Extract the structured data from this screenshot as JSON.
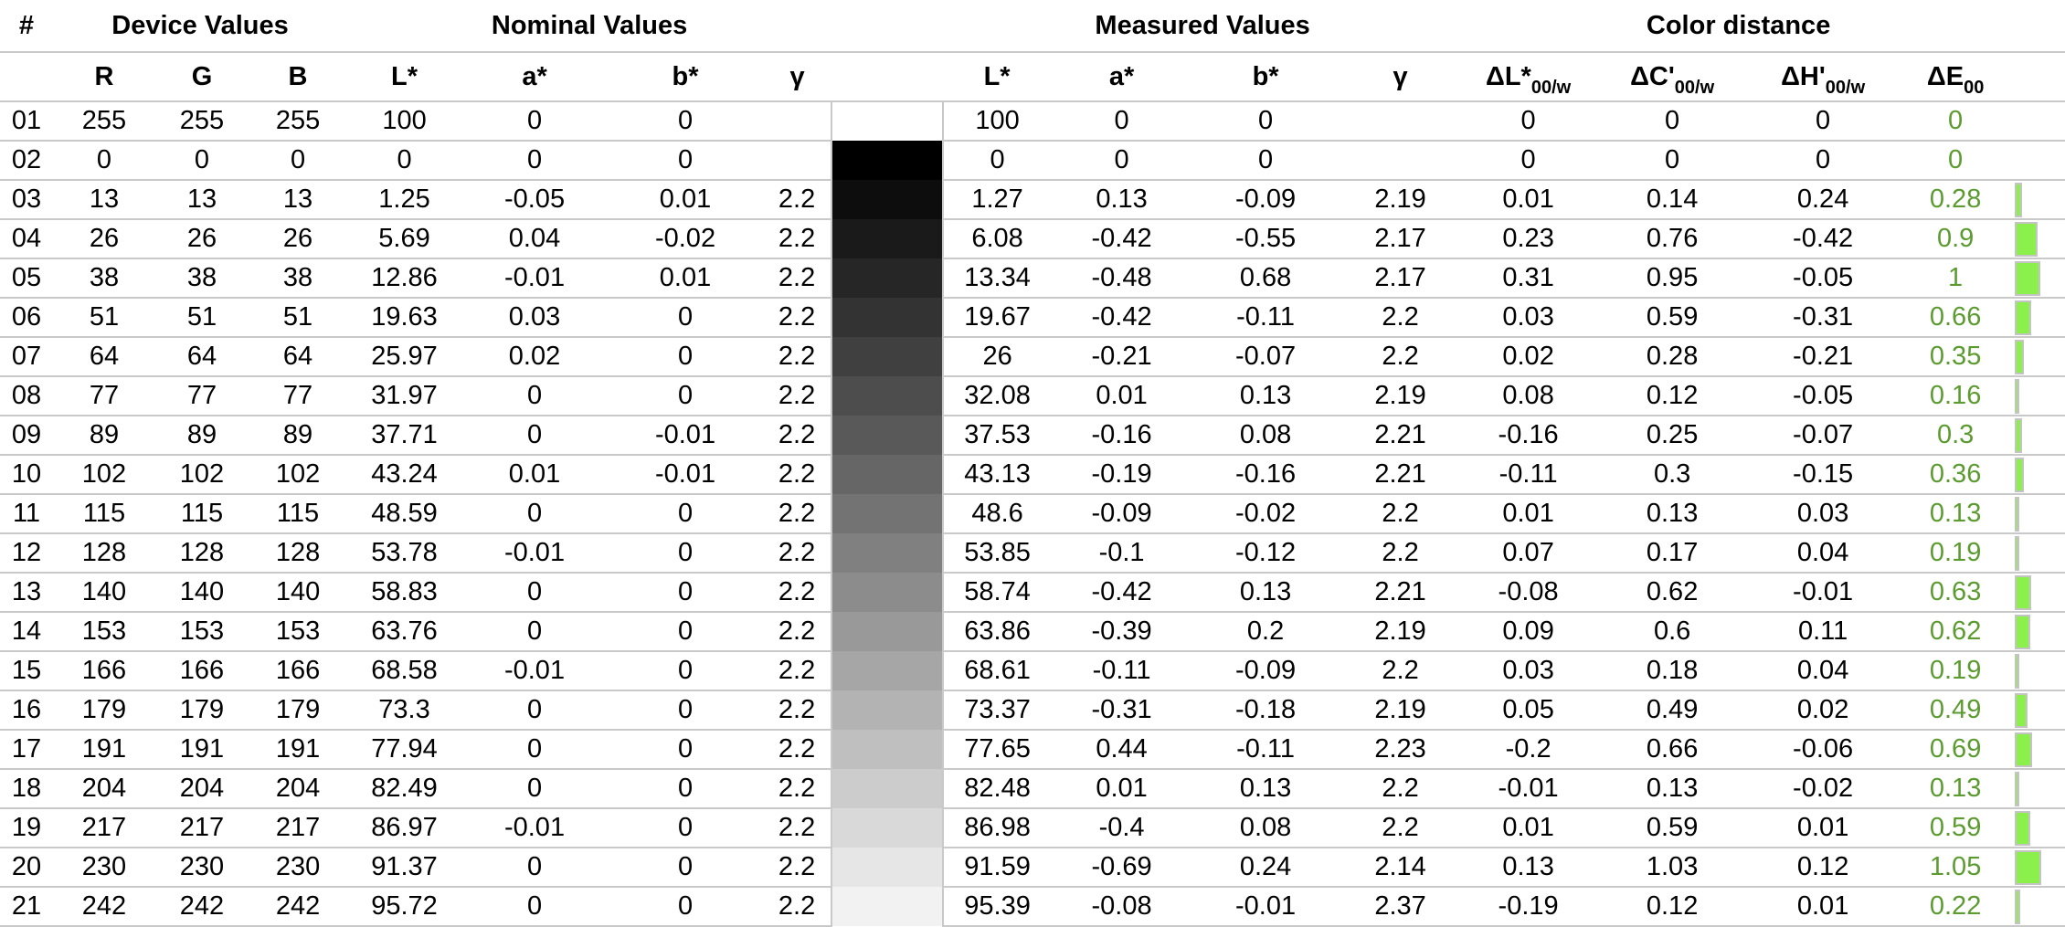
{
  "header": {
    "groups": {
      "index": "#",
      "device": "Device Values",
      "nominal": "Nominal Values",
      "measured": "Measured Values",
      "distance": "Color distance"
    },
    "device_cols": [
      "R",
      "G",
      "B"
    ],
    "nominal_cols": [
      "L*",
      "a*",
      "b*",
      "γ"
    ],
    "measured_cols": [
      "L*",
      "a*",
      "b*",
      "γ"
    ],
    "distance_cols": [
      {
        "base": "ΔL*",
        "sub": "00/w"
      },
      {
        "base": "ΔC'",
        "sub": "00/w"
      },
      {
        "base": "ΔH'",
        "sub": "00/w"
      },
      {
        "base": "ΔE",
        "sub": "00"
      }
    ]
  },
  "colors": {
    "grid_line": "#c9c9c9",
    "delta_e_text": "#5b9b30",
    "bar_fill": "#8cf04c",
    "bar_border": "#c4c4c4"
  },
  "rows": [
    {
      "num": "01",
      "device": [
        255,
        255,
        255
      ],
      "nominal": [
        "100",
        "0",
        "0",
        ""
      ],
      "measured": [
        "100",
        "0",
        "0",
        ""
      ],
      "distance": [
        "0",
        "0",
        "0"
      ],
      "delta_e": "0"
    },
    {
      "num": "02",
      "device": [
        0,
        0,
        0
      ],
      "nominal": [
        "0",
        "0",
        "0",
        ""
      ],
      "measured": [
        "0",
        "0",
        "0",
        ""
      ],
      "distance": [
        "0",
        "0",
        "0"
      ],
      "delta_e": "0"
    },
    {
      "num": "03",
      "device": [
        13,
        13,
        13
      ],
      "nominal": [
        "1.25",
        "-0.05",
        "0.01",
        "2.2"
      ],
      "measured": [
        "1.27",
        "0.13",
        "-0.09",
        "2.19"
      ],
      "distance": [
        "0.01",
        "0.14",
        "0.24"
      ],
      "delta_e": "0.28"
    },
    {
      "num": "04",
      "device": [
        26,
        26,
        26
      ],
      "nominal": [
        "5.69",
        "0.04",
        "-0.02",
        "2.2"
      ],
      "measured": [
        "6.08",
        "-0.42",
        "-0.55",
        "2.17"
      ],
      "distance": [
        "0.23",
        "0.76",
        "-0.42"
      ],
      "delta_e": "0.9"
    },
    {
      "num": "05",
      "device": [
        38,
        38,
        38
      ],
      "nominal": [
        "12.86",
        "-0.01",
        "0.01",
        "2.2"
      ],
      "measured": [
        "13.34",
        "-0.48",
        "0.68",
        "2.17"
      ],
      "distance": [
        "0.31",
        "0.95",
        "-0.05"
      ],
      "delta_e": "1"
    },
    {
      "num": "06",
      "device": [
        51,
        51,
        51
      ],
      "nominal": [
        "19.63",
        "0.03",
        "0",
        "2.2"
      ],
      "measured": [
        "19.67",
        "-0.42",
        "-0.11",
        "2.2"
      ],
      "distance": [
        "0.03",
        "0.59",
        "-0.31"
      ],
      "delta_e": "0.66"
    },
    {
      "num": "07",
      "device": [
        64,
        64,
        64
      ],
      "nominal": [
        "25.97",
        "0.02",
        "0",
        "2.2"
      ],
      "measured": [
        "26",
        "-0.21",
        "-0.07",
        "2.2"
      ],
      "distance": [
        "0.02",
        "0.28",
        "-0.21"
      ],
      "delta_e": "0.35"
    },
    {
      "num": "08",
      "device": [
        77,
        77,
        77
      ],
      "nominal": [
        "31.97",
        "0",
        "0",
        "2.2"
      ],
      "measured": [
        "32.08",
        "0.01",
        "0.13",
        "2.19"
      ],
      "distance": [
        "0.08",
        "0.12",
        "-0.05"
      ],
      "delta_e": "0.16"
    },
    {
      "num": "09",
      "device": [
        89,
        89,
        89
      ],
      "nominal": [
        "37.71",
        "0",
        "-0.01",
        "2.2"
      ],
      "measured": [
        "37.53",
        "-0.16",
        "0.08",
        "2.21"
      ],
      "distance": [
        "-0.16",
        "0.25",
        "-0.07"
      ],
      "delta_e": "0.3"
    },
    {
      "num": "10",
      "device": [
        102,
        102,
        102
      ],
      "nominal": [
        "43.24",
        "0.01",
        "-0.01",
        "2.2"
      ],
      "measured": [
        "43.13",
        "-0.19",
        "-0.16",
        "2.21"
      ],
      "distance": [
        "-0.11",
        "0.3",
        "-0.15"
      ],
      "delta_e": "0.36"
    },
    {
      "num": "11",
      "device": [
        115,
        115,
        115
      ],
      "nominal": [
        "48.59",
        "0",
        "0",
        "2.2"
      ],
      "measured": [
        "48.6",
        "-0.09",
        "-0.02",
        "2.2"
      ],
      "distance": [
        "0.01",
        "0.13",
        "0.03"
      ],
      "delta_e": "0.13"
    },
    {
      "num": "12",
      "device": [
        128,
        128,
        128
      ],
      "nominal": [
        "53.78",
        "-0.01",
        "0",
        "2.2"
      ],
      "measured": [
        "53.85",
        "-0.1",
        "-0.12",
        "2.2"
      ],
      "distance": [
        "0.07",
        "0.17",
        "0.04"
      ],
      "delta_e": "0.19"
    },
    {
      "num": "13",
      "device": [
        140,
        140,
        140
      ],
      "nominal": [
        "58.83",
        "0",
        "0",
        "2.2"
      ],
      "measured": [
        "58.74",
        "-0.42",
        "0.13",
        "2.21"
      ],
      "distance": [
        "-0.08",
        "0.62",
        "-0.01"
      ],
      "delta_e": "0.63"
    },
    {
      "num": "14",
      "device": [
        153,
        153,
        153
      ],
      "nominal": [
        "63.76",
        "0",
        "0",
        "2.2"
      ],
      "measured": [
        "63.86",
        "-0.39",
        "0.2",
        "2.19"
      ],
      "distance": [
        "0.09",
        "0.6",
        "0.11"
      ],
      "delta_e": "0.62"
    },
    {
      "num": "15",
      "device": [
        166,
        166,
        166
      ],
      "nominal": [
        "68.58",
        "-0.01",
        "0",
        "2.2"
      ],
      "measured": [
        "68.61",
        "-0.11",
        "-0.09",
        "2.2"
      ],
      "distance": [
        "0.03",
        "0.18",
        "0.04"
      ],
      "delta_e": "0.19"
    },
    {
      "num": "16",
      "device": [
        179,
        179,
        179
      ],
      "nominal": [
        "73.3",
        "0",
        "0",
        "2.2"
      ],
      "measured": [
        "73.37",
        "-0.31",
        "-0.18",
        "2.19"
      ],
      "distance": [
        "0.05",
        "0.49",
        "0.02"
      ],
      "delta_e": "0.49"
    },
    {
      "num": "17",
      "device": [
        191,
        191,
        191
      ],
      "nominal": [
        "77.94",
        "0",
        "0",
        "2.2"
      ],
      "measured": [
        "77.65",
        "0.44",
        "-0.11",
        "2.23"
      ],
      "distance": [
        "-0.2",
        "0.66",
        "-0.06"
      ],
      "delta_e": "0.69"
    },
    {
      "num": "18",
      "device": [
        204,
        204,
        204
      ],
      "nominal": [
        "82.49",
        "0",
        "0",
        "2.2"
      ],
      "measured": [
        "82.48",
        "0.01",
        "0.13",
        "2.2"
      ],
      "distance": [
        "-0.01",
        "0.13",
        "-0.02"
      ],
      "delta_e": "0.13"
    },
    {
      "num": "19",
      "device": [
        217,
        217,
        217
      ],
      "nominal": [
        "86.97",
        "-0.01",
        "0",
        "2.2"
      ],
      "measured": [
        "86.98",
        "-0.4",
        "0.08",
        "2.2"
      ],
      "distance": [
        "0.01",
        "0.59",
        "0.01"
      ],
      "delta_e": "0.59"
    },
    {
      "num": "20",
      "device": [
        230,
        230,
        230
      ],
      "nominal": [
        "91.37",
        "0",
        "0",
        "2.2"
      ],
      "measured": [
        "91.59",
        "-0.69",
        "0.24",
        "2.14"
      ],
      "distance": [
        "0.13",
        "1.03",
        "0.12"
      ],
      "delta_e": "1.05"
    },
    {
      "num": "21",
      "device": [
        242,
        242,
        242
      ],
      "nominal": [
        "95.72",
        "0",
        "0",
        "2.2"
      ],
      "measured": [
        "95.39",
        "-0.08",
        "-0.01",
        "2.37"
      ],
      "distance": [
        "-0.19",
        "0.12",
        "0.01"
      ],
      "delta_e": "0.22"
    }
  ]
}
